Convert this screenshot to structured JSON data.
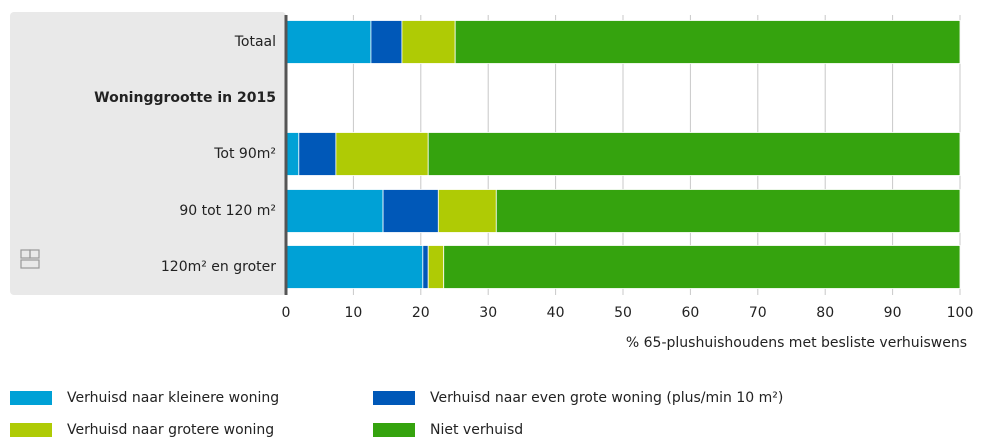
{
  "chart_data": {
    "type": "stacked-barh",
    "categories": [
      "Totaal",
      "Woninggrootte in 2015",
      "Tot 90m²",
      "90 tot 120 m²",
      "120m² en groter"
    ],
    "series": [
      {
        "name": "Verhuisd naar kleinere woning",
        "color": "#00a1d6",
        "values": [
          12.6,
          null,
          1.9,
          14.4,
          20.3
        ]
      },
      {
        "name": "Verhuisd naar even grote woning (plus/min 10 m²)",
        "color": "#0058b8",
        "values": [
          4.6,
          null,
          5.5,
          8.2,
          0.8
        ]
      },
      {
        "name": "Verhuisd naar grotere woning",
        "color": "#afcb05",
        "values": [
          7.9,
          null,
          13.7,
          8.6,
          2.3
        ]
      },
      {
        "name": "Niet verhuisd",
        "color": "#35a30e",
        "values": [
          74.9,
          null,
          78.9,
          68.8,
          76.6
        ]
      }
    ],
    "xlabel": "% 65-plushuishoudens met besliste verhuiswens",
    "xlim": [
      0,
      100
    ],
    "xticks": [
      0,
      10,
      20,
      30,
      40,
      50,
      60,
      70,
      80,
      90,
      100
    ],
    "grid": true
  }
}
